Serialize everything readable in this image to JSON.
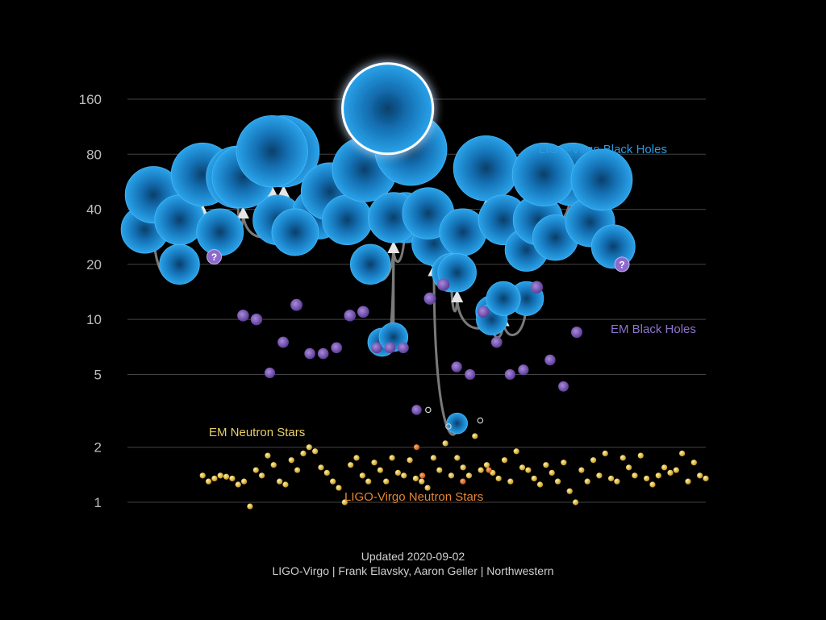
{
  "chart_data": {
    "type": "scatter",
    "yscale": "log",
    "ylim": [
      1,
      160
    ],
    "yticks": [
      "1",
      "2",
      "5",
      "10",
      "20",
      "40",
      "80",
      "160"
    ],
    "yticks_values": [
      1,
      2,
      5,
      10,
      20,
      40,
      80,
      160
    ],
    "grid": true,
    "colors": {
      "ligo_bh": "#1d8fd6",
      "em_bh": "#7b59b8",
      "em_ns": "#e6c84a",
      "ligo_ns": "#e07a24",
      "arrow": "#8a8a8a",
      "background": "#000000"
    },
    "series": [
      {
        "name": "LIGO-Virgo Black Holes"
      },
      {
        "name": "EM Black Holes"
      },
      {
        "name": "EM Neutron Stars"
      },
      {
        "name": "LIGO-Virgo Neutron Stars"
      }
    ],
    "unknown_marker": "?",
    "mergers": [
      {
        "m1": 31,
        "m2": 20,
        "final": 48,
        "x": [
          0.03,
          0.09,
          0.045
        ]
      },
      {
        "m1": 35,
        "m2": 30,
        "final": 62,
        "x": [
          0.09,
          0.16,
          0.13
        ]
      },
      {
        "m1": 60,
        "m2": 35,
        "final": 60,
        "x": [
          0.19,
          0.26,
          0.2
        ]
      },
      {
        "m1": 38,
        "m2": 30,
        "final": 83,
        "x": [
          0.33,
          0.29,
          0.27
        ]
      },
      {
        "m1": 50,
        "m2": 35,
        "final": 83,
        "x": [
          0.35,
          0.38,
          0.25
        ]
      },
      {
        "m1": 66,
        "m2": 85,
        "final": 142,
        "x": [
          0.41,
          0.49,
          0.45
        ]
      },
      {
        "m1": 20,
        "m2": 7.5,
        "final": 36,
        "x": [
          0.42,
          0.44,
          0.46
        ]
      },
      {
        "m1": 36,
        "m2": 8,
        "final": 36,
        "x": [
          0.48,
          0.46,
          0.46
        ]
      },
      {
        "m1": 24,
        "m2": 2.7,
        "final": 26,
        "x": [
          0.55,
          0.57,
          0.53
        ]
      },
      {
        "m1": 38,
        "m2": 30,
        "final": 67,
        "x": [
          0.52,
          0.58,
          0.62
        ]
      },
      {
        "m1": 18,
        "m2": 11,
        "final": 18,
        "x": [
          0.56,
          0.63,
          0.57
        ]
      },
      {
        "m1": 35,
        "m2": 24,
        "final": 35,
        "x": [
          0.65,
          0.69,
          0.71
        ]
      },
      {
        "m1": 13,
        "m2": 10,
        "final": 13,
        "x": [
          0.69,
          0.63,
          0.65
        ]
      },
      {
        "m1": 62,
        "m2": 28,
        "final": 62,
        "x": [
          0.77,
          0.74,
          0.72
        ]
      },
      {
        "m1": 34,
        "m2": 25,
        "final": 58,
        "x": [
          0.8,
          0.84,
          0.82
        ]
      }
    ],
    "em_black_holes": [
      10.5,
      7,
      15,
      7,
      11,
      7.5,
      13,
      8.5,
      7,
      5.3,
      6.5,
      5,
      5.1,
      3.2,
      4.3,
      11,
      5,
      6.5,
      5.5,
      10,
      7,
      6,
      10.5,
      7.5,
      12,
      15.5
    ],
    "em_neutron_stars": [
      1.4,
      1.3,
      1.35,
      1.4,
      1.38,
      1.35,
      1.25,
      1.3,
      0.95,
      1.5,
      1.4,
      1.8,
      1.6,
      1.3,
      1.25,
      1.7,
      1.5,
      1.85,
      2.0,
      1.9,
      1.55,
      1.45,
      1.3,
      1.2,
      1.0,
      1.6,
      1.75,
      1.4,
      1.3,
      1.65,
      1.5,
      1.3,
      1.75,
      1.45,
      1.4,
      1.7,
      1.35,
      1.3,
      1.2,
      1.75,
      1.5,
      2.1,
      1.4,
      1.75,
      1.55,
      1.4,
      2.3,
      1.5,
      1.6,
      1.45,
      1.35,
      1.7,
      1.3,
      1.9,
      1.55,
      1.5,
      1.35,
      1.25,
      1.6,
      1.45,
      1.3,
      1.65,
      1.15,
      1.0,
      1.5,
      1.3,
      1.7,
      1.4,
      1.85,
      1.35,
      1.3,
      1.75,
      1.55,
      1.4,
      1.8,
      1.35,
      1.25,
      1.4,
      1.55,
      1.45,
      1.5,
      1.85,
      1.3,
      1.65,
      1.4,
      1.35
    ],
    "ligo_neutron_stars": [
      2.0,
      1.4,
      1.3,
      1.5
    ],
    "ligo_ns_remnants": [
      3.2,
      2.6,
      2.8
    ]
  },
  "footer": {
    "updated": "Updated 2020-09-02",
    "credit": "LIGO-Virgo | Frank Elavsky, Aaron Geller | Northwestern"
  }
}
